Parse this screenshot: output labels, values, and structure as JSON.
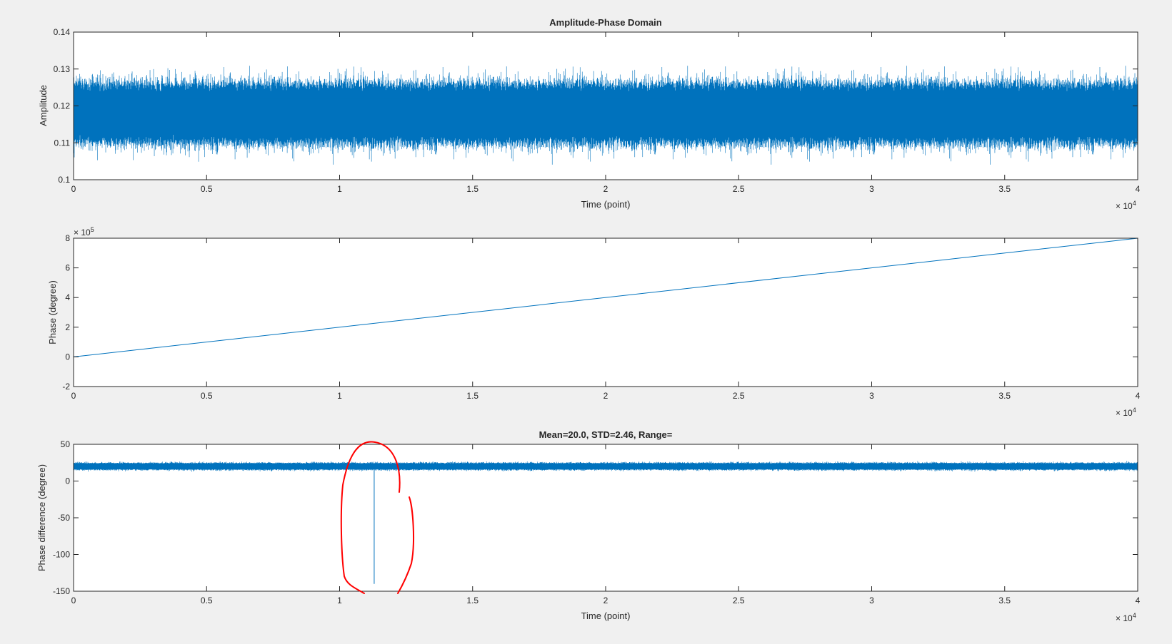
{
  "figure": {
    "background": "#f0f0f0",
    "line_color": "#0072bd",
    "annotation_color": "#ff0000"
  },
  "chart_data": [
    {
      "type": "line",
      "title": "Amplitude-Phase Domain",
      "xlabel": "Time (point)",
      "ylabel": "Amplitude",
      "xlim": [
        0,
        40000
      ],
      "ylim": [
        0.1,
        0.14
      ],
      "x_exponent_label": "× 10",
      "x_exponent": "4",
      "x_tick_labels": [
        "0",
        "0.5",
        "1",
        "1.5",
        "2",
        "2.5",
        "3",
        "3.5",
        "4"
      ],
      "y_tick_values": [
        0.1,
        0.11,
        0.12,
        0.13,
        0.14
      ],
      "y_tick_labels": [
        "0.1",
        "0.11",
        "0.12",
        "0.13",
        "0.14"
      ],
      "series": [
        {
          "n_points": 40000,
          "x_range": [
            0,
            40000
          ],
          "mean": 0.1175,
          "dense_band": [
            0.11,
            0.126
          ],
          "peak_range": [
            0.103,
            0.133
          ]
        }
      ],
      "grid": false
    },
    {
      "type": "line",
      "title": "",
      "xlabel": "",
      "ylabel": "Phase (degree)",
      "xlim": [
        0,
        40000
      ],
      "ylim": [
        -2,
        8
      ],
      "x_exponent_label": "× 10",
      "x_exponent": "4",
      "y_exponent_label": "× 10",
      "y_exponent": "5",
      "x_tick_labels": [
        "0",
        "0.5",
        "1",
        "1.5",
        "2",
        "2.5",
        "3",
        "3.5",
        "4"
      ],
      "y_tick_values": [
        -2,
        0,
        2,
        4,
        6,
        8
      ],
      "y_tick_labels": [
        "-2",
        "0",
        "2",
        "4",
        "6",
        "8"
      ],
      "series": [
        {
          "x": [
            0,
            40000
          ],
          "y": [
            0,
            8
          ]
        }
      ],
      "grid": false
    },
    {
      "type": "line",
      "title": "Mean=20.0, STD=2.46, Range=",
      "xlabel": "Time (point)",
      "ylabel": "Phase difference (degree)",
      "xlim": [
        0,
        40000
      ],
      "ylim": [
        -150,
        50
      ],
      "x_exponent_label": "× 10",
      "x_exponent": "4",
      "x_tick_labels": [
        "0",
        "0.5",
        "1",
        "1.5",
        "2",
        "2.5",
        "3",
        "3.5",
        "4"
      ],
      "y_tick_values": [
        -150,
        -100,
        -50,
        0,
        50
      ],
      "y_tick_labels": [
        "-150",
        "-100",
        "-50",
        "0",
        "50"
      ],
      "series": [
        {
          "n_points": 40000,
          "x_range": [
            0,
            40000
          ],
          "mean": 20.0,
          "std": 2.46,
          "spike": {
            "x": 11300,
            "y_min": -140,
            "y_max": 22
          }
        }
      ],
      "grid": false
    }
  ],
  "annotation": {
    "type": "hand-drawn-ellipse",
    "encircles": "phase-difference spike"
  }
}
